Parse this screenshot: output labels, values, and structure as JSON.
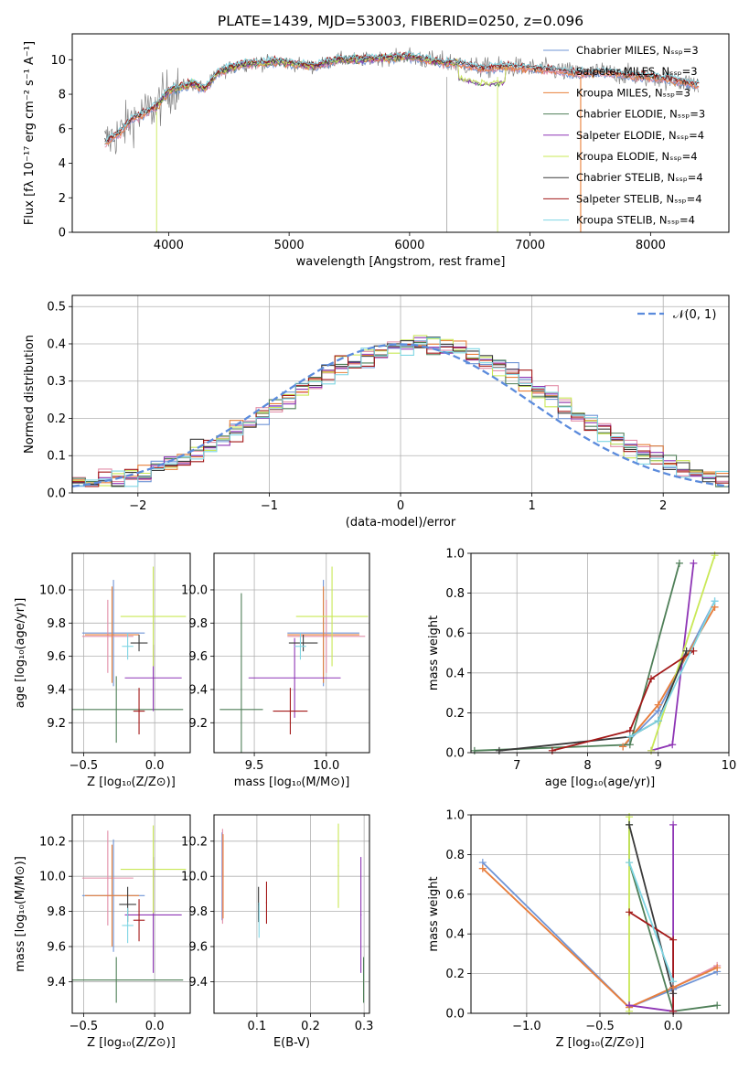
{
  "title": "PLATE=1439, MJD=53003, FIBERID=0250, z=0.096",
  "colors": {
    "Chabrier MILES": "#6f94d6",
    "Salpeter MILES": "#e28ea8",
    "Kroupa MILES": "#e8803a",
    "Chabrier ELODIE": "#4f7f58",
    "Salpeter ELODIE": "#8e35b5",
    "Kroupa ELODIE": "#c9e856",
    "Chabrier STELIB": "#3a3a3a",
    "Salpeter STELIB": "#a31818",
    "Kroupa STELIB": "#7fd6e4",
    "data": "#808080",
    "normal": "#5b8bdc"
  },
  "chart_data": [
    {
      "id": "spectrum",
      "type": "line",
      "xlabel": "wavelength [Angstrom, rest frame]",
      "ylabel": "Flux [fλ 10⁻¹⁷ erg cm⁻² s⁻¹ A⁻¹]",
      "xlim": [
        3200,
        8650
      ],
      "ylim": [
        0,
        11.5
      ],
      "xticks": [
        4000,
        5000,
        6000,
        7000,
        8000
      ],
      "yticks": [
        0,
        2,
        4,
        6,
        8,
        10
      ],
      "grid": false,
      "legend": [
        {
          "label": "Chabrier MILES, Nₛₛₚ=3"
        },
        {
          "label": "Salpeter MILES, Nₛₛₚ=3"
        },
        {
          "label": "Kroupa MILES, Nₛₛₚ=3"
        },
        {
          "label": "Chabrier ELODIE, Nₛₛₚ=3"
        },
        {
          "label": "Salpeter ELODIE, Nₛₛₚ=4"
        },
        {
          "label": "Kroupa ELODIE, Nₛₛₚ=4"
        },
        {
          "label": "Chabrier STELIB, Nₛₛₚ=4"
        },
        {
          "label": "Salpeter STELIB, Nₛₛₚ=4"
        },
        {
          "label": "Kroupa STELIB, Nₛₛₚ=4"
        }
      ],
      "legend_placement": "right",
      "continuum": {
        "x": [
          3470,
          3600,
          3700,
          3800,
          3900,
          4000,
          4100,
          4200,
          4300,
          4400,
          4500,
          4600,
          4700,
          4800,
          4900,
          5000,
          5200,
          5400,
          5600,
          5800,
          6000,
          6200,
          6400,
          6600,
          6800,
          7000,
          7200,
          7400,
          7600,
          7800,
          8000,
          8200,
          8400
        ],
        "y": [
          5.2,
          5.8,
          6.6,
          6.9,
          7.3,
          8.2,
          8.4,
          8.6,
          8.3,
          9.2,
          9.5,
          9.7,
          9.8,
          9.8,
          9.9,
          9.8,
          9.6,
          10.0,
          10.0,
          10.1,
          10.2,
          9.9,
          9.8,
          9.5,
          9.6,
          9.5,
          9.4,
          9.2,
          9.3,
          9.1,
          9.0,
          8.8,
          8.5
        ]
      },
      "elodie_truncated_x": [
        3900,
        6800
      ]
    },
    {
      "id": "residuals",
      "type": "histogram",
      "xlabel": "(data-model)/error",
      "ylabel": "Normed distribution",
      "xlim": [
        -2.5,
        2.5
      ],
      "ylim": [
        0,
        0.53
      ],
      "xticks": [
        -2,
        -1,
        0,
        1,
        2
      ],
      "yticks": [
        0.0,
        0.1,
        0.2,
        0.3,
        0.4,
        0.5
      ],
      "grid": true,
      "legend": [
        {
          "label": "𝒩(0, 1)"
        }
      ],
      "legend_placement": "top-right"
    },
    {
      "id": "z-age",
      "type": "scatter",
      "xlabel": "Z [log₁₀(Z/Z⊙)]",
      "ylabel": "age  [log₁₀(age/yr)]",
      "xlim": [
        -0.58,
        0.25
      ],
      "ylim": [
        9.02,
        10.22
      ],
      "xticks": [
        -0.5,
        0.0
      ],
      "yticks": [
        9.2,
        9.4,
        9.6,
        9.8,
        10.0
      ],
      "grid": true,
      "points": [
        {
          "s": "Chabrier MILES",
          "x": -0.29,
          "y": 9.74,
          "xe": 0.22,
          "ye": 0.32
        },
        {
          "s": "Salpeter MILES",
          "x": -0.33,
          "y": 9.72,
          "xe": 0.18,
          "ye": 0.22
        },
        {
          "s": "Kroupa MILES",
          "x": -0.3,
          "y": 9.73,
          "xe": 0.19,
          "ye": 0.29
        },
        {
          "s": "Chabrier ELODIE",
          "x": -0.27,
          "y": 9.28,
          "xe": 0.47,
          "ye": 0.2
        },
        {
          "s": "Salpeter ELODIE",
          "x": -0.01,
          "y": 9.47,
          "xe": 0.2,
          "ye": 0.2
        },
        {
          "s": "Kroupa ELODIE",
          "x": -0.01,
          "y": 9.84,
          "xe": 0.23,
          "ye": 0.3
        },
        {
          "s": "Chabrier STELIB",
          "x": -0.11,
          "y": 9.68,
          "xe": 0.06,
          "ye": 0.05
        },
        {
          "s": "Salpeter STELIB",
          "x": -0.11,
          "y": 9.27,
          "xe": 0.04,
          "ye": 0.14
        },
        {
          "s": "Kroupa STELIB",
          "x": -0.19,
          "y": 9.66,
          "xe": 0.04,
          "ye": 0.08
        }
      ]
    },
    {
      "id": "mass-age",
      "type": "scatter",
      "xlabel": "mass [log₁₀(M/M⊙)]",
      "ylabel": "",
      "xlim": [
        9.22,
        10.3
      ],
      "ylim": [
        9.02,
        10.22
      ],
      "xticks": [
        9.5,
        10.0
      ],
      "yticks": [
        9.2,
        9.4,
        9.6,
        9.8,
        10.0
      ],
      "grid": true,
      "points": [
        {
          "s": "Chabrier MILES",
          "x": 9.98,
          "y": 9.74,
          "xe": 0.25,
          "ye": 0.32
        },
        {
          "s": "Salpeter MILES",
          "x": 10.0,
          "y": 9.72,
          "xe": 0.27,
          "ye": 0.22
        },
        {
          "s": "Kroupa MILES",
          "x": 9.98,
          "y": 9.73,
          "xe": 0.25,
          "ye": 0.29
        },
        {
          "s": "Chabrier ELODIE",
          "x": 9.41,
          "y": 9.28,
          "xe": 0.15,
          "ye": 0.7
        },
        {
          "s": "Salpeter ELODIE",
          "x": 9.78,
          "y": 9.47,
          "xe": 0.32,
          "ye": 0.24
        },
        {
          "s": "Kroupa ELODIE",
          "x": 10.04,
          "y": 9.84,
          "xe": 0.25,
          "ye": 0.3
        },
        {
          "s": "Chabrier STELIB",
          "x": 9.84,
          "y": 9.68,
          "xe": 0.1,
          "ye": 0.05
        },
        {
          "s": "Salpeter STELIB",
          "x": 9.75,
          "y": 9.27,
          "xe": 0.12,
          "ye": 0.14
        },
        {
          "s": "Kroupa STELIB",
          "x": 9.82,
          "y": 9.66,
          "xe": 0.04,
          "ye": 0.08
        }
      ]
    },
    {
      "id": "age-weight",
      "type": "line",
      "xlabel": "age  [log₁₀(age/yr)]",
      "ylabel": "mass weight",
      "xlim": [
        6.35,
        10.0
      ],
      "ylim": [
        0,
        1.0
      ],
      "xticks": [
        7,
        8,
        9,
        10
      ],
      "yticks": [
        0.0,
        0.2,
        0.4,
        0.6,
        0.8,
        1.0
      ],
      "grid": true,
      "series": [
        {
          "s": "Chabrier MILES",
          "x": [
            8.5,
            9.0,
            9.8
          ],
          "y": [
            0.03,
            0.21,
            0.76
          ]
        },
        {
          "s": "Salpeter MILES",
          "x": [
            8.5,
            9.0,
            9.8
          ],
          "y": [
            0.03,
            0.24,
            0.73
          ]
        },
        {
          "s": "Kroupa MILES",
          "x": [
            8.5,
            9.0,
            9.8
          ],
          "y": [
            0.03,
            0.24,
            0.73
          ]
        },
        {
          "s": "Chabrier ELODIE",
          "x": [
            6.4,
            8.6,
            9.3
          ],
          "y": [
            0.01,
            0.04,
            0.95
          ]
        },
        {
          "s": "Salpeter ELODIE",
          "x": [
            8.9,
            9.2,
            9.5
          ],
          "y": [
            0.01,
            0.04,
            0.95
          ]
        },
        {
          "s": "Kroupa ELODIE",
          "x": [
            8.9,
            9.8
          ],
          "y": [
            0.01,
            0.99
          ]
        },
        {
          "s": "Chabrier STELIB",
          "x": [
            6.75,
            8.6,
            9.0,
            9.4
          ],
          "y": [
            0.01,
            0.08,
            0.16,
            0.51
          ]
        },
        {
          "s": "Salpeter STELIB",
          "x": [
            7.5,
            8.6,
            8.9,
            9.5
          ],
          "y": [
            0.01,
            0.11,
            0.37,
            0.51
          ]
        },
        {
          "s": "Kroupa STELIB",
          "x": [
            8.6,
            9.0,
            9.8
          ],
          "y": [
            0.08,
            0.16,
            0.76
          ]
        }
      ]
    },
    {
      "id": "z-mass",
      "type": "scatter",
      "xlabel": "Z [log₁₀(Z/Z⊙)]",
      "ylabel": "mass [log₁₀(M/M⊙)]",
      "xlim": [
        -0.58,
        0.25
      ],
      "ylim": [
        9.22,
        10.35
      ],
      "xticks": [
        -0.5,
        0.0
      ],
      "yticks": [
        9.4,
        9.6,
        9.8,
        10.0,
        10.2
      ],
      "grid": true,
      "points": [
        {
          "s": "Chabrier MILES",
          "x": -0.29,
          "y": 9.89,
          "xe": 0.22,
          "ye": 0.32
        },
        {
          "s": "Salpeter MILES",
          "x": -0.33,
          "y": 9.99,
          "xe": 0.18,
          "ye": 0.27
        },
        {
          "s": "Kroupa MILES",
          "x": -0.3,
          "y": 9.89,
          "xe": 0.19,
          "ye": 0.29
        },
        {
          "s": "Chabrier ELODIE",
          "x": -0.27,
          "y": 9.41,
          "xe": 0.47,
          "ye": 0.13
        },
        {
          "s": "Salpeter ELODIE",
          "x": -0.01,
          "y": 9.78,
          "xe": 0.2,
          "ye": 0.33
        },
        {
          "s": "Kroupa ELODIE",
          "x": -0.01,
          "y": 10.04,
          "xe": 0.23,
          "ye": 0.25
        },
        {
          "s": "Chabrier STELIB",
          "x": -0.19,
          "y": 9.84,
          "xe": 0.06,
          "ye": 0.1
        },
        {
          "s": "Salpeter STELIB",
          "x": -0.11,
          "y": 9.75,
          "xe": 0.04,
          "ye": 0.12
        },
        {
          "s": "Kroupa STELIB",
          "x": -0.19,
          "y": 9.72,
          "xe": 0.04,
          "ye": 0.1
        }
      ]
    },
    {
      "id": "ebv-mass",
      "type": "scatter",
      "xlabel": "E(B-V)",
      "ylabel": "",
      "xlim": [
        0.02,
        0.31
      ],
      "ylim": [
        9.22,
        10.35
      ],
      "xticks": [
        0.1,
        0.2,
        0.3
      ],
      "yticks": [
        9.4,
        9.6,
        9.8,
        10.0,
        10.2
      ],
      "grid": true,
      "points": [
        {
          "s": "Chabrier MILES",
          "x": 0.035,
          "y": 10.0,
          "xe": 0.001,
          "ye": 0.25
        },
        {
          "s": "Salpeter MILES",
          "x": 0.036,
          "y": 10.0,
          "xe": 0.001,
          "ye": 0.27
        },
        {
          "s": "Kroupa MILES",
          "x": 0.037,
          "y": 10.0,
          "xe": 0.001,
          "ye": 0.24
        },
        {
          "s": "Chabrier ELODIE",
          "x": 0.299,
          "y": 9.41,
          "xe": 0.001,
          "ye": 0.13
        },
        {
          "s": "Salpeter ELODIE",
          "x": 0.294,
          "y": 9.78,
          "xe": 0.001,
          "ye": 0.33
        },
        {
          "s": "Kroupa ELODIE",
          "x": 0.252,
          "y": 10.06,
          "xe": 0.001,
          "ye": 0.24
        },
        {
          "s": "Chabrier STELIB",
          "x": 0.103,
          "y": 9.84,
          "xe": 0.001,
          "ye": 0.1
        },
        {
          "s": "Salpeter STELIB",
          "x": 0.118,
          "y": 9.85,
          "xe": 0.001,
          "ye": 0.12
        },
        {
          "s": "Kroupa STELIB",
          "x": 0.104,
          "y": 9.75,
          "xe": 0.001,
          "ye": 0.1
        }
      ]
    },
    {
      "id": "z-weight",
      "type": "line",
      "xlabel": "Z [log₁₀(Z/Z⊙)]",
      "ylabel": "mass weight",
      "xlim": [
        -1.38,
        0.38
      ],
      "ylim": [
        0,
        1.0
      ],
      "xticks": [
        -1.0,
        -0.5,
        0.0
      ],
      "yticks": [
        0.0,
        0.2,
        0.4,
        0.6,
        0.8,
        1.0
      ],
      "grid": true,
      "series": [
        {
          "s": "Chabrier MILES",
          "x": [
            -1.3,
            -0.3,
            0.0,
            0.3
          ],
          "y": [
            0.76,
            0.03,
            0.12,
            0.21
          ]
        },
        {
          "s": "Salpeter MILES",
          "x": [
            -1.3,
            -0.3,
            0.0,
            0.3
          ],
          "y": [
            0.73,
            0.03,
            0.13,
            0.24
          ]
        },
        {
          "s": "Kroupa MILES",
          "x": [
            -1.3,
            -0.3,
            0.0,
            0.3
          ],
          "y": [
            0.73,
            0.03,
            0.13,
            0.23
          ]
        },
        {
          "s": "Chabrier ELODIE",
          "x": [
            -0.3,
            -0.3,
            0.0,
            0.3
          ],
          "y": [
            0.95,
            0.76,
            0.01,
            0.04
          ]
        },
        {
          "s": "Salpeter ELODIE",
          "x": [
            -0.3,
            -0.3,
            0.0,
            0.0
          ],
          "y": [
            0.04,
            0.04,
            0.01,
            0.95
          ]
        },
        {
          "s": "Kroupa ELODIE",
          "x": [
            -0.3,
            -0.3
          ],
          "y": [
            0.99,
            0.01
          ]
        },
        {
          "s": "Chabrier STELIB",
          "x": [
            -0.3,
            0.0
          ],
          "y": [
            0.95,
            0.1
          ]
        },
        {
          "s": "Salpeter STELIB",
          "x": [
            -0.3,
            0.0,
            0.0
          ],
          "y": [
            0.51,
            0.37,
            0.01
          ]
        },
        {
          "s": "Kroupa STELIB",
          "x": [
            -0.3,
            0.0
          ],
          "y": [
            0.76,
            0.16
          ]
        }
      ]
    }
  ]
}
